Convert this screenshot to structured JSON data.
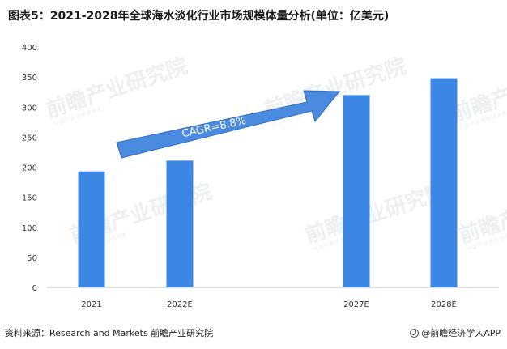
{
  "title": "图表5：2021-2028年全球海水淡化行业市场规模体量分析(单位：亿美元)",
  "source": "资料来源：Research and Markets 前瞻产业研究院",
  "brand": "@前瞻经济学人APP",
  "watermark": {
    "text": "前瞻产业研究院",
    "sub": "中国产业咨询领导者"
  },
  "colors": {
    "bar": "#3d87e4",
    "arrow": "#4a8bdf",
    "arrow_stroke": "#2e6fc4"
  },
  "chart_data": {
    "type": "bar",
    "title": "图表5：2021-2028年全球海水淡化行业市场规模体量分析(单位：亿美元)",
    "categories": [
      "2021",
      "2022E",
      "",
      "2027E",
      "2028E"
    ],
    "values": [
      193,
      211,
      null,
      320,
      348
    ],
    "ylim": [
      0,
      400
    ],
    "yticks": [
      0,
      50,
      100,
      150,
      200,
      250,
      300,
      350,
      400
    ],
    "grid": false,
    "annotation": "CAGR=8.8%"
  }
}
